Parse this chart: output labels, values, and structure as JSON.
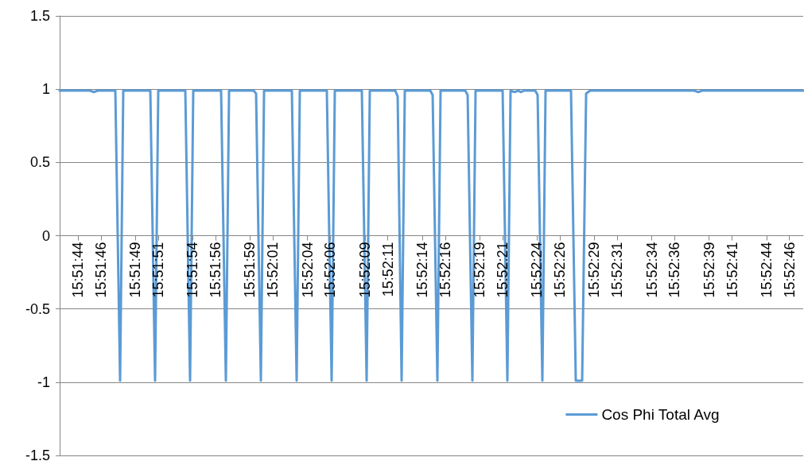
{
  "chart_data": {
    "type": "line",
    "xlim": [
      15.861779,
      15.879778
    ],
    "xticks": [
      {
        "value": 15.862222,
        "label": "15:51:44"
      },
      {
        "value": 15.862778,
        "label": "15:51:46"
      },
      {
        "value": 15.863611,
        "label": "15:51:49"
      },
      {
        "value": 15.864167,
        "label": "15:51:51"
      },
      {
        "value": 15.865,
        "label": "15:51:54"
      },
      {
        "value": 15.865556,
        "label": "15:51:56"
      },
      {
        "value": 15.866389,
        "label": "15:51:59"
      },
      {
        "value": 15.866944,
        "label": "15:52:01"
      },
      {
        "value": 15.867778,
        "label": "15:52:04"
      },
      {
        "value": 15.868333,
        "label": "15:52:06"
      },
      {
        "value": 15.869167,
        "label": "15:52:09"
      },
      {
        "value": 15.869722,
        "label": "15:52:11"
      },
      {
        "value": 15.870556,
        "label": "15:52:14"
      },
      {
        "value": 15.871111,
        "label": "15:52:16"
      },
      {
        "value": 15.871944,
        "label": "15:52:19"
      },
      {
        "value": 15.8725,
        "label": "15:52:21"
      },
      {
        "value": 15.873333,
        "label": "15:52:24"
      },
      {
        "value": 15.873889,
        "label": "15:52:26"
      },
      {
        "value": 15.874722,
        "label": "15:52:29"
      },
      {
        "value": 15.875278,
        "label": "15:52:31"
      },
      {
        "value": 15.876111,
        "label": "15:52:34"
      },
      {
        "value": 15.876667,
        "label": "15:52:36"
      },
      {
        "value": 15.8775,
        "label": "15:52:39"
      },
      {
        "value": 15.878056,
        "label": "15:52:41"
      },
      {
        "value": 15.878889,
        "label": "15:52:44"
      },
      {
        "value": 15.879444,
        "label": "15:52:46"
      }
    ],
    "ylim": [
      -1.5,
      1.5
    ],
    "yticks": [
      -1.5,
      -1,
      -0.5,
      0,
      0.5,
      1,
      1.5
    ],
    "grid": "y",
    "legend": "bottom right",
    "marker": "none",
    "line_style": "solid",
    "series": [
      {
        "name": "Cos Phi Total Avg",
        "color": "#5b9bd5",
        "x": [
          15.861779,
          15.862511,
          15.862607,
          15.862703,
          15.863127,
          15.863242,
          15.863319,
          15.863974,
          15.864089,
          15.864166,
          15.864821,
          15.864936,
          15.865013,
          15.865687,
          15.865803,
          15.86588,
          15.866476,
          15.866534,
          15.86665,
          15.866727,
          15.8674,
          15.867516,
          15.867593,
          15.868247,
          15.868363,
          15.86844,
          15.869094,
          15.86921,
          15.869287,
          15.869903,
          15.869961,
          15.870057,
          15.870134,
          15.87075,
          15.870808,
          15.870923,
          15.871,
          15.871597,
          15.871655,
          15.87177,
          15.871847,
          15.872502,
          15.872617,
          15.872694,
          15.87279,
          15.872887,
          15.872944,
          15.873021,
          15.873291,
          15.873349,
          15.873464,
          15.873541,
          15.874157,
          15.874273,
          15.874427,
          15.874523,
          15.874619,
          15.877141,
          15.877237,
          15.877333,
          15.879778
        ],
        "values": [
          0.99,
          0.99,
          0.98,
          0.99,
          0.99,
          -0.99,
          0.99,
          0.99,
          -0.99,
          0.99,
          0.99,
          -0.99,
          0.99,
          0.99,
          -0.99,
          0.99,
          0.99,
          0.97,
          -0.99,
          0.99,
          0.99,
          -0.99,
          0.99,
          0.99,
          -0.99,
          0.99,
          0.99,
          -0.99,
          0.99,
          0.99,
          0.95,
          -0.99,
          0.99,
          0.99,
          0.96,
          -0.99,
          0.99,
          0.99,
          0.96,
          -0.99,
          0.99,
          0.99,
          -0.99,
          0.99,
          0.98,
          0.99,
          0.98,
          0.99,
          0.99,
          0.96,
          -0.99,
          0.99,
          0.99,
          -0.99,
          -0.99,
          0.97,
          0.99,
          0.99,
          0.98,
          0.99,
          0.99
        ]
      }
    ]
  }
}
